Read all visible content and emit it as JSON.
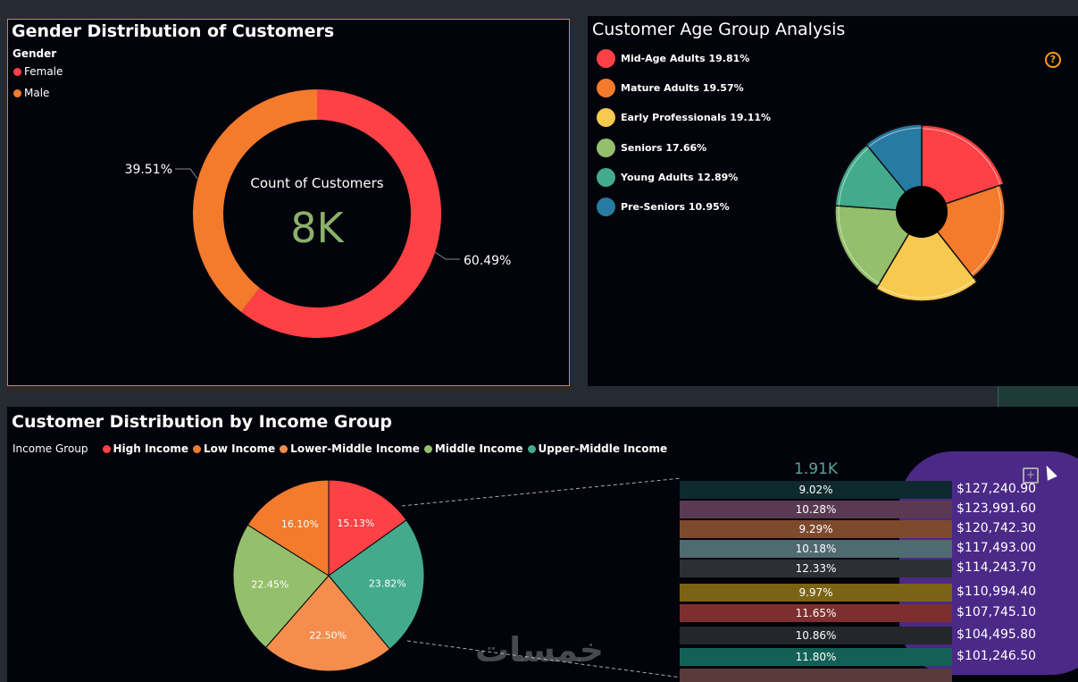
{
  "gender_panel": {
    "title": "Gender Distribution of Customers",
    "legend_title": "Gender",
    "center_label": "Count of Customers",
    "center_value": "8K",
    "female_pct": "60.49%",
    "male_pct": "39.51%"
  },
  "age_panel": {
    "title": "Customer Age Group Analysis",
    "help_glyph": "?"
  },
  "income_panel": {
    "title": "Customer Distribution by Income Group",
    "legend_title": "Income Group",
    "aggregate_label": "1.91K",
    "rows": [
      {
        "pct": "9.02%",
        "value": "$127,240.90",
        "color": "#0f2a2e"
      },
      {
        "pct": "10.28%",
        "value": "$123,991.60",
        "color": "#5a3a52"
      },
      {
        "pct": "9.29%",
        "value": "$120,742.30",
        "color": "#7e4a2e"
      },
      {
        "pct": "10.18%",
        "value": "$117,493.00",
        "color": "#506a72"
      },
      {
        "pct": "12.33%",
        "value": "$114,243.70",
        "color": "#2c3034"
      },
      {
        "pct": "9.97%",
        "value": "$110,994.40",
        "color": "#7b6316"
      },
      {
        "pct": "11.65%",
        "value": "$107,745.10",
        "color": "#7d2f2f"
      },
      {
        "pct": "10.86%",
        "value": "$104,495.80",
        "color": "#23272c"
      },
      {
        "pct": "11.80%",
        "value": "$101,246.50",
        "color": "#136156"
      }
    ]
  },
  "watermark": "خمسات",
  "colors": {
    "accent_border": "#f47a2c",
    "center_value": "#8cb06a"
  },
  "chart_data": [
    {
      "type": "pie",
      "title": "Gender Distribution of Customers",
      "legend_title": "Gender",
      "categories": [
        "Female",
        "Male"
      ],
      "values": [
        60.49,
        39.51
      ],
      "colors": [
        "#fd4144",
        "#f47a2c"
      ],
      "donut": true
    },
    {
      "type": "pie",
      "title": "Customer Age Group Analysis",
      "categories": [
        "Mid-Age Adults",
        "Mature Adults",
        "Early Professionals",
        "Seniors",
        "Young Adults",
        "Pre-Seniors"
      ],
      "values": [
        19.81,
        19.57,
        19.11,
        17.66,
        12.89,
        10.95
      ],
      "legend_labels": [
        "Mid-Age Adults 19.81%",
        "Mature Adults 19.57%",
        "Early Professionals 19.11%",
        "Seniors 17.66%",
        "Young Adults 12.89%",
        "Pre-Seniors 10.95%"
      ],
      "colors": [
        "#fd4144",
        "#f47a2c",
        "#f8c94f",
        "#94bf6c",
        "#43ab8c",
        "#277aa1"
      ],
      "donut": true
    },
    {
      "type": "pie",
      "title": "Customer Distribution by Income Group",
      "legend_title": "Income Group",
      "legend": [
        "High Income",
        "Low Income",
        "Lower-Middle Income",
        "Middle Income",
        "Upper-Middle Income"
      ],
      "legend_colors": [
        "#fd4144",
        "#f47a2c",
        "#f58d4c",
        "#94bf6c",
        "#43ab8c"
      ],
      "slices": [
        {
          "label": "15.13%",
          "value": 15.13,
          "color": "#fd4144"
        },
        {
          "label": "23.82%",
          "value": 23.82,
          "color": "#43ab8c"
        },
        {
          "label": "22.50%",
          "value": 22.5,
          "color": "#f58d4c"
        },
        {
          "label": "22.45%",
          "value": 22.45,
          "color": "#94bf6c"
        },
        {
          "label": "16.10%",
          "value": 16.1,
          "color": "#f47a2c"
        }
      ]
    }
  ]
}
